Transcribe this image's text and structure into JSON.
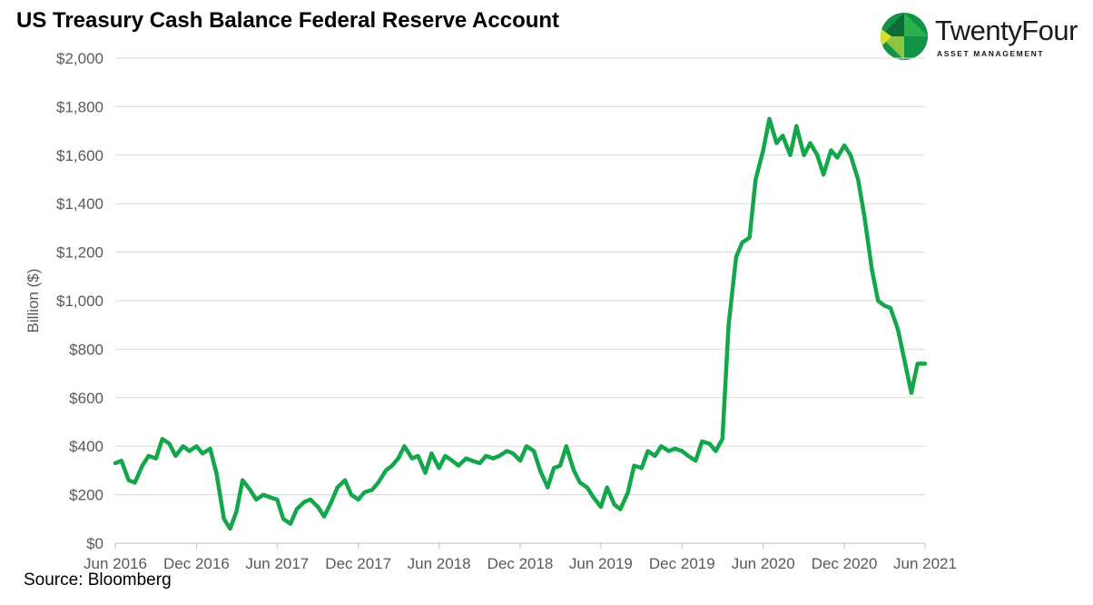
{
  "title": "US Treasury Cash Balance Federal Reserve Account",
  "source": "Source: Bloomberg",
  "brand": {
    "name": "TwentyFour",
    "subtitle": "ASSET MANAGEMENT",
    "colors": [
      "#0d6b3a",
      "#129448",
      "#2bb04e",
      "#8cc63f",
      "#d8e02c"
    ]
  },
  "chart_data": {
    "type": "line",
    "ylabel": "Billion ($)",
    "xlabel": "",
    "ylim": [
      0,
      2000
    ],
    "yticks": [
      0,
      200,
      400,
      600,
      800,
      1000,
      1200,
      1400,
      1600,
      1800,
      2000
    ],
    "ytick_labels": [
      "$0",
      "$200",
      "$400",
      "$600",
      "$800",
      "$1,000",
      "$1,200",
      "$1,400",
      "$1,600",
      "$1,800",
      "$2,000"
    ],
    "xlim": [
      "2016-06-01",
      "2021-06-01"
    ],
    "xticks": [
      "2016-06-01",
      "2016-12-01",
      "2017-06-01",
      "2017-12-01",
      "2018-06-01",
      "2018-12-01",
      "2019-06-01",
      "2019-12-01",
      "2020-06-01",
      "2020-12-01",
      "2021-06-01"
    ],
    "xtick_labels": [
      "Jun 2016",
      "Dec 2016",
      "Jun 2017",
      "Dec 2017",
      "Jun 2018",
      "Dec 2018",
      "Jun 2019",
      "Dec 2019",
      "Jun 2020",
      "Dec 2020",
      "Jun 2021"
    ],
    "grid": true,
    "line_color": "#13a64b",
    "gridline_color": "#d9d9d9",
    "series": [
      {
        "x": [
          "2016-06-01",
          "2016-06-15",
          "2016-07-01",
          "2016-07-15",
          "2016-08-01",
          "2016-08-15",
          "2016-09-01",
          "2016-09-15",
          "2016-10-01",
          "2016-10-15",
          "2016-11-01",
          "2016-11-15",
          "2016-12-01",
          "2016-12-15",
          "2017-01-01",
          "2017-01-15",
          "2017-02-01",
          "2017-02-15",
          "2017-03-01",
          "2017-03-15",
          "2017-04-01",
          "2017-04-15",
          "2017-05-01",
          "2017-05-15",
          "2017-06-01",
          "2017-06-15",
          "2017-07-01",
          "2017-07-15",
          "2017-08-01",
          "2017-08-15",
          "2017-09-01",
          "2017-09-15",
          "2017-10-01",
          "2017-10-15",
          "2017-11-01",
          "2017-11-15",
          "2017-12-01",
          "2017-12-15",
          "2018-01-01",
          "2018-01-15",
          "2018-02-01",
          "2018-02-15",
          "2018-03-01",
          "2018-03-15",
          "2018-04-01",
          "2018-04-15",
          "2018-05-01",
          "2018-05-15",
          "2018-06-01",
          "2018-06-15",
          "2018-07-01",
          "2018-07-15",
          "2018-08-01",
          "2018-08-15",
          "2018-09-01",
          "2018-09-15",
          "2018-10-01",
          "2018-10-15",
          "2018-11-01",
          "2018-11-15",
          "2018-12-01",
          "2018-12-15",
          "2019-01-01",
          "2019-01-15",
          "2019-02-01",
          "2019-02-15",
          "2019-03-01",
          "2019-03-15",
          "2019-04-01",
          "2019-04-15",
          "2019-05-01",
          "2019-05-15",
          "2019-06-01",
          "2019-06-15",
          "2019-07-01",
          "2019-07-15",
          "2019-08-01",
          "2019-08-15",
          "2019-09-01",
          "2019-09-15",
          "2019-10-01",
          "2019-10-15",
          "2019-11-01",
          "2019-11-15",
          "2019-12-01",
          "2019-12-15",
          "2020-01-01",
          "2020-01-15",
          "2020-02-01",
          "2020-02-15",
          "2020-03-01",
          "2020-03-15",
          "2020-04-01",
          "2020-04-15",
          "2020-05-01",
          "2020-05-15",
          "2020-06-01",
          "2020-06-15",
          "2020-07-01",
          "2020-07-15",
          "2020-08-01",
          "2020-08-15",
          "2020-09-01",
          "2020-09-15",
          "2020-10-01",
          "2020-10-15",
          "2020-11-01",
          "2020-11-15",
          "2020-12-01",
          "2020-12-15",
          "2021-01-01",
          "2021-01-15",
          "2021-02-01",
          "2021-02-15",
          "2021-03-01",
          "2021-03-15",
          "2021-04-01",
          "2021-04-15",
          "2021-05-01",
          "2021-05-15",
          "2021-06-01"
        ],
        "values": [
          330,
          340,
          260,
          250,
          320,
          360,
          350,
          430,
          410,
          360,
          400,
          380,
          400,
          370,
          390,
          290,
          100,
          60,
          130,
          260,
          220,
          180,
          200,
          190,
          180,
          100,
          80,
          140,
          170,
          180,
          150,
          110,
          170,
          230,
          260,
          200,
          180,
          210,
          220,
          250,
          300,
          320,
          350,
          400,
          350,
          360,
          290,
          370,
          310,
          360,
          340,
          320,
          350,
          340,
          330,
          360,
          350,
          360,
          380,
          370,
          340,
          400,
          380,
          300,
          230,
          310,
          320,
          400,
          300,
          250,
          230,
          190,
          150,
          230,
          160,
          140,
          210,
          320,
          310,
          380,
          360,
          400,
          380,
          390,
          380,
          360,
          340,
          420,
          410,
          380,
          430,
          900,
          1180,
          1240,
          1260,
          1500,
          1620,
          1750,
          1650,
          1680,
          1600,
          1720,
          1600,
          1650,
          1600,
          1520,
          1620,
          1590,
          1640,
          1600,
          1500,
          1350,
          1130,
          1000,
          980,
          970,
          880,
          760,
          620,
          740,
          740
        ]
      }
    ]
  }
}
